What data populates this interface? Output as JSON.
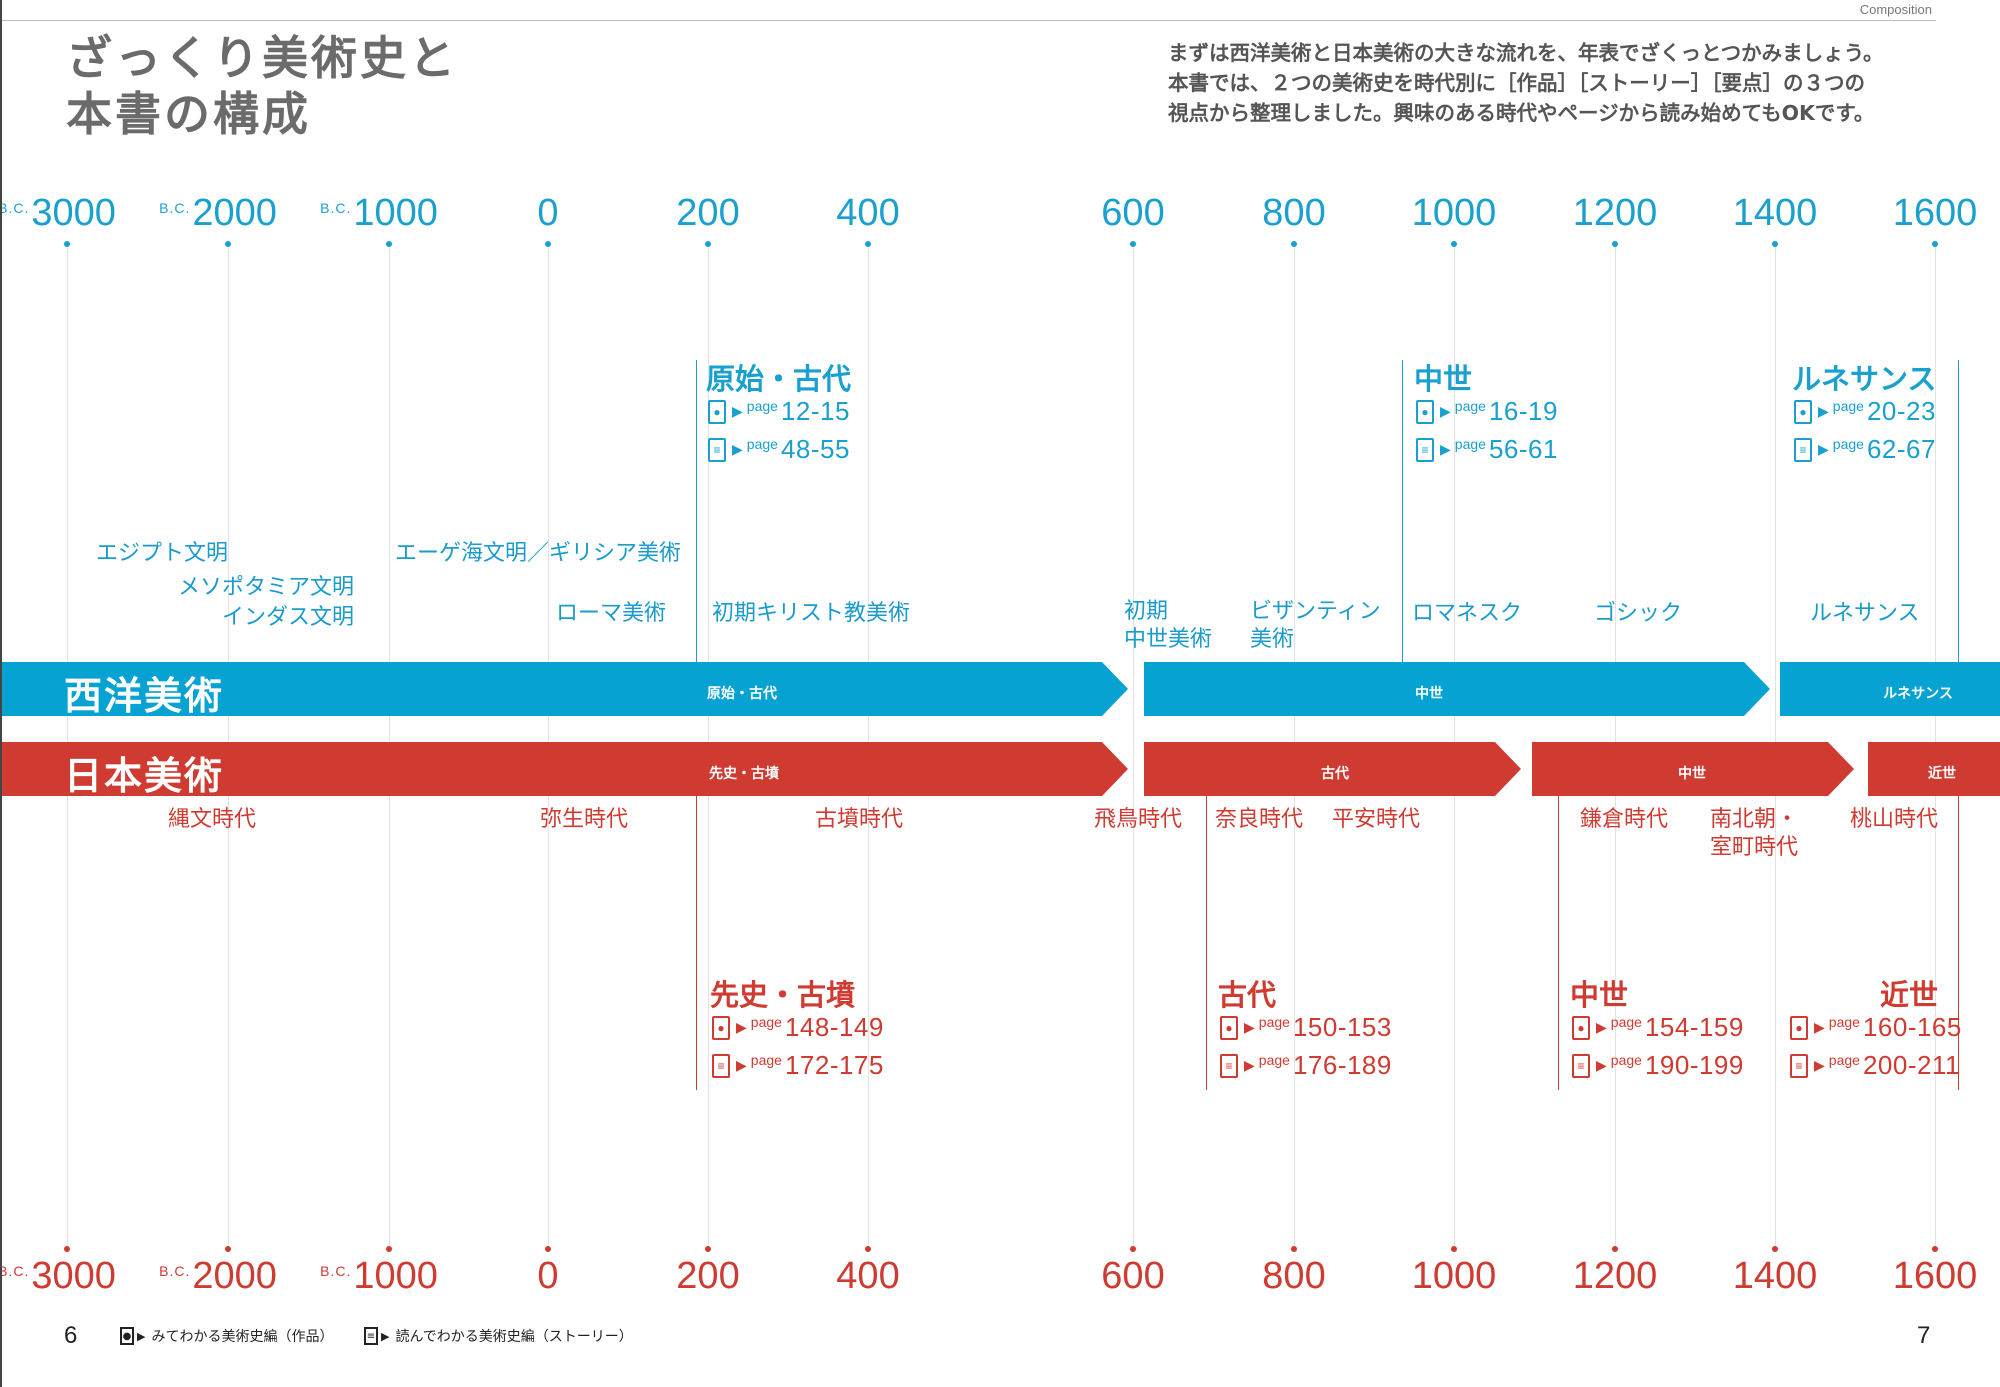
{
  "page": {
    "section_label": "Composition",
    "title": "ざっくり美術史と\n本書の構成",
    "intro": "まずは西洋美術と日本美術の大きな流れを、年表でざくっとつかみましょう。\n本書では、２つの美術史を時代別に［作品］［ストーリー］［要点］の３つの\n視点から整理しました。興味のある時代やページから読み始めてもOKです。",
    "page_left": "6",
    "page_right": "7"
  },
  "timeline": {
    "bc_prefix": "B.C.",
    "years_top": [
      "3000",
      "2000",
      "1000",
      "0",
      "200",
      "400",
      "600",
      "800",
      "1000",
      "1200",
      "1400",
      "1600"
    ],
    "years_bottom": [
      "3000",
      "2000",
      "1000",
      "0",
      "200",
      "400",
      "600",
      "800",
      "1000",
      "1200",
      "1400",
      "1600"
    ],
    "bc_flags": [
      true,
      true,
      true,
      false,
      false,
      false,
      false,
      false,
      false,
      false,
      false,
      false
    ]
  },
  "west": {
    "band_label": "西洋美術",
    "color": "#06a2d2",
    "segments": [
      "原始・古代",
      "中世",
      "ルネサンス"
    ],
    "periods": [
      "エジプト文明",
      "メソポタミア文明",
      "インダス文明",
      "エーゲ海文明／ギリシア美術",
      "ローマ美術",
      "初期キリスト教美術",
      "初期\n中世美術",
      "ビザンティン\n美術",
      "ロマネスク",
      "ゴシック",
      "ルネサンス"
    ],
    "eras": [
      {
        "name": "原始・古代",
        "works": "12-15",
        "story": "48-55"
      },
      {
        "name": "中世",
        "works": "16-19",
        "story": "56-61"
      },
      {
        "name": "ルネサンス",
        "works": "20-23",
        "story": "62-67"
      }
    ]
  },
  "japan": {
    "band_label": "日本美術",
    "color": "#cf3a31",
    "segments": [
      "先史・古墳",
      "古代",
      "中世",
      "近世"
    ],
    "periods": [
      "縄文時代",
      "弥生時代",
      "古墳時代",
      "飛鳥時代",
      "奈良時代",
      "平安時代",
      "鎌倉時代",
      "南北朝・\n室町時代",
      "桃山時代"
    ],
    "eras": [
      {
        "name": "先史・古墳",
        "works": "148-149",
        "story": "172-175"
      },
      {
        "name": "古代",
        "works": "150-153",
        "story": "176-189"
      },
      {
        "name": "中世",
        "works": "154-159",
        "story": "190-199"
      },
      {
        "name": "近世",
        "works": "160-165",
        "story": "200-211"
      }
    ]
  },
  "page_word": "page",
  "legend": {
    "works": "みてわかる美術史編（作品）",
    "story": "読んでわかる美術史編（ストーリー）"
  }
}
